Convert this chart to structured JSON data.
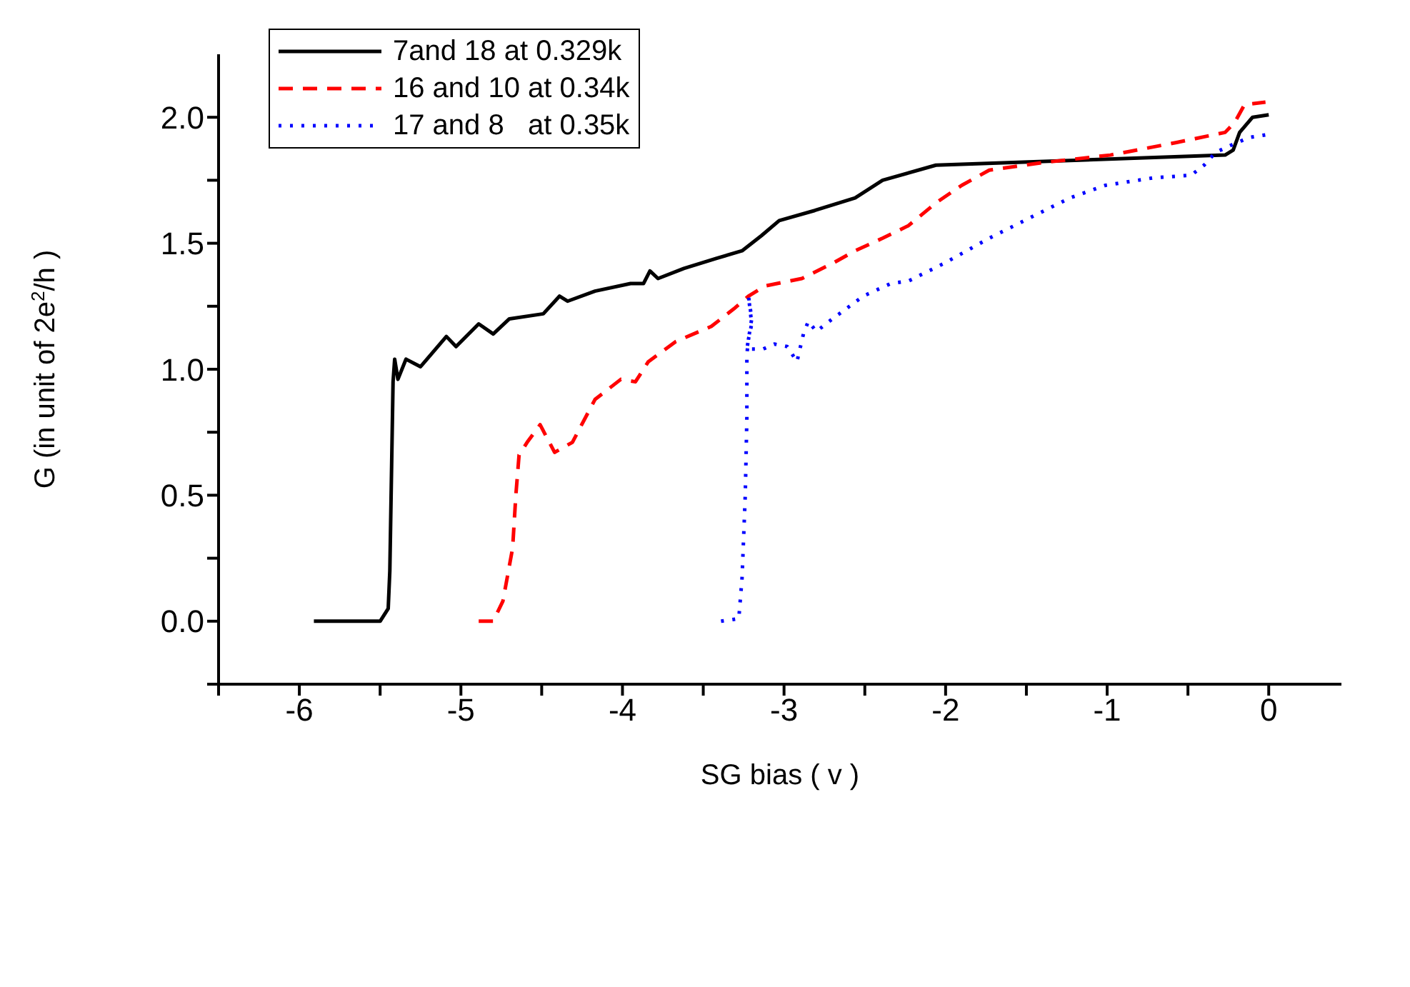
{
  "chart_data": {
    "type": "line",
    "xlabel": "SG bias ( v )",
    "ylabel": "G (in unit of 2e$^{2}$/h )",
    "xlim": [
      -6.5,
      0.45
    ],
    "xticks": [
      {
        "value": -6.5,
        "label": null
      },
      -6,
      {
        "value": -5.5,
        "label": null
      },
      -5,
      {
        "value": -4.5,
        "label": null
      },
      -4,
      {
        "value": -3.5,
        "label": null
      },
      -3,
      {
        "value": -2.5,
        "label": null
      },
      -2,
      {
        "value": -1.5,
        "label": null
      },
      -1,
      {
        "value": -0.5,
        "label": null
      },
      0
    ],
    "ylim": [
      -0.25,
      2.25
    ],
    "yticks": [
      {
        "value": -0.25,
        "label": null
      },
      {
        "value": 0,
        "label": "0.0"
      },
      {
        "value": 0.25,
        "label": null
      },
      {
        "value": 0.5,
        "label": "0.5"
      },
      {
        "value": 0.75,
        "label": null
      },
      {
        "value": 1,
        "label": "1.0"
      },
      {
        "value": 1.25,
        "label": null
      },
      {
        "value": 1.5,
        "label": "1.5"
      },
      {
        "value": 1.75,
        "label": null
      },
      {
        "value": 2,
        "label": "2.0"
      }
    ],
    "legend": "top left",
    "marker": "none",
    "series": [
      {
        "name": "7and 18 at 0.329k",
        "color": "#000000",
        "line_style": "solid",
        "x": [
          -5.91,
          -5.5,
          -5.45,
          -5.44,
          -5.42,
          -5.41,
          -5.39,
          -5.34,
          -5.25,
          -5.09,
          -5.03,
          -4.89,
          -4.8,
          -4.7,
          -4.49,
          -4.39,
          -4.34,
          -4.17,
          -3.95,
          -3.87,
          -3.83,
          -3.78,
          -3.62,
          -3.42,
          -3.26,
          -3.14,
          -3.03,
          -2.81,
          -2.56,
          -2.39,
          -2.06,
          -0.27,
          -0.22,
          -0.18,
          -0.1,
          0
        ],
        "values": [
          0,
          0,
          0.05,
          0.2,
          0.95,
          1.04,
          0.96,
          1.04,
          1.01,
          1.13,
          1.09,
          1.18,
          1.14,
          1.2,
          1.22,
          1.29,
          1.27,
          1.31,
          1.34,
          1.34,
          1.39,
          1.36,
          1.4,
          1.44,
          1.47,
          1.53,
          1.59,
          1.63,
          1.68,
          1.75,
          1.81,
          1.85,
          1.87,
          1.94,
          2,
          2.01
        ]
      },
      {
        "name": "16 and 10 at 0.34k",
        "color": "#ff0000",
        "line_style": "dashed",
        "x": [
          -4.89,
          -4.8,
          -4.74,
          -4.68,
          -4.66,
          -4.64,
          -4.59,
          -4.51,
          -4.42,
          -4.31,
          -4.17,
          -4.01,
          -3.92,
          -3.84,
          -3.67,
          -3.45,
          -3.31,
          -3.22,
          -3.12,
          -2.89,
          -2.7,
          -2.56,
          -2.39,
          -2.23,
          -2.06,
          -1.9,
          -1.73,
          -1.4,
          -0.98,
          -0.57,
          -0.27,
          -0.21,
          -0.15,
          -0.02
        ],
        "values": [
          0,
          0,
          0.08,
          0.29,
          0.5,
          0.66,
          0.71,
          0.78,
          0.67,
          0.71,
          0.88,
          0.96,
          0.95,
          1.03,
          1.11,
          1.17,
          1.24,
          1.29,
          1.33,
          1.36,
          1.42,
          1.47,
          1.52,
          1.57,
          1.66,
          1.73,
          1.79,
          1.82,
          1.85,
          1.9,
          1.94,
          1.98,
          2.05,
          2.06
        ]
      },
      {
        "name": "17 and 8   at 0.35k",
        "color": "#0000ff",
        "line_style": "dotted",
        "x": [
          -3.39,
          -3.28,
          -3.26,
          -3.24,
          -3.23,
          -3.23,
          -3.22,
          -3.2,
          -3.22,
          -3.2,
          -3.23,
          -3.13,
          -3.06,
          -2.98,
          -2.92,
          -2.88,
          -2.85,
          -2.8,
          -2.7,
          -2.51,
          -2.34,
          -2.23,
          -2.01,
          -1.73,
          -1.45,
          -1.23,
          -1.01,
          -0.71,
          -0.48,
          -0.4,
          -0.33,
          -0.23,
          -0.12,
          -0.02
        ],
        "values": [
          0,
          0.01,
          0.17,
          0.5,
          0.81,
          1.06,
          1.12,
          1.18,
          1.29,
          1.2,
          1.08,
          1.08,
          1.1,
          1.09,
          1.03,
          1.14,
          1.19,
          1.15,
          1.2,
          1.29,
          1.34,
          1.35,
          1.42,
          1.52,
          1.61,
          1.68,
          1.73,
          1.76,
          1.77,
          1.81,
          1.86,
          1.89,
          1.92,
          1.93
        ]
      }
    ]
  }
}
